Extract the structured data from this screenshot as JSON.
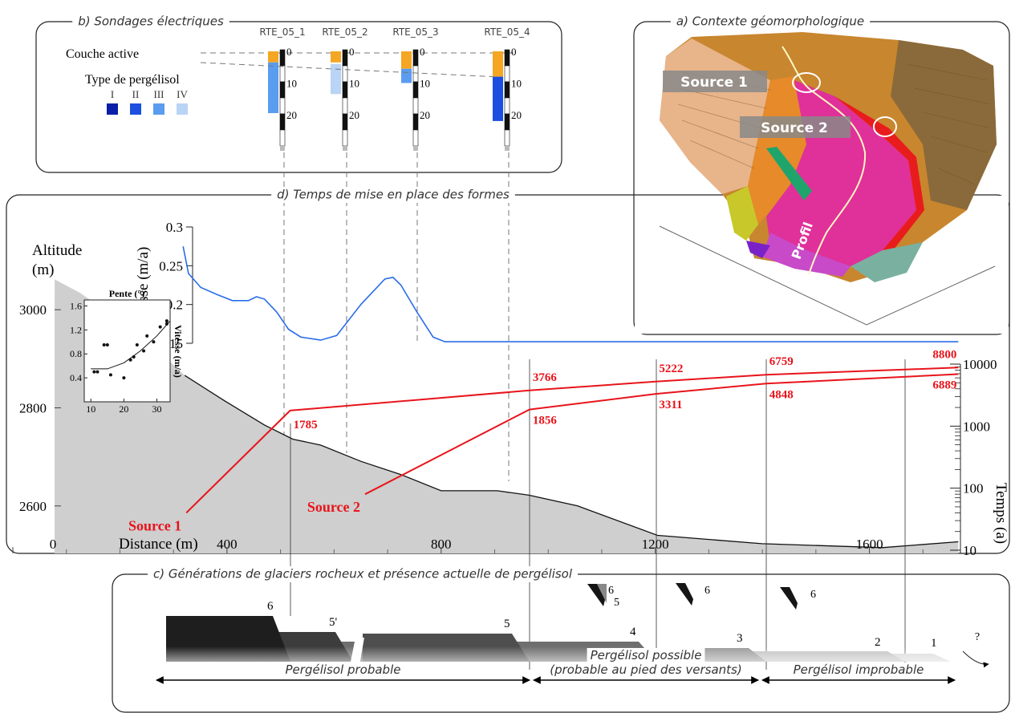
{
  "panel_b": {
    "title": "b) Sondages électriques",
    "active_layer_label": "Couche active",
    "type_label": "Type de pergélisol",
    "types": [
      {
        "label": "I",
        "color": "#0a1fa8"
      },
      {
        "label": "II",
        "color": "#1c4fe0"
      },
      {
        "label": "III",
        "color": "#5a9cf0"
      },
      {
        "label": "IV",
        "color": "#b9d4f4"
      }
    ],
    "active_color": "#f5a623",
    "depth_ticks": [
      0,
      10,
      20
    ],
    "soundings": [
      {
        "name": "RTE_05_1",
        "active_layer": 3.5,
        "permafrost": [
          3.5,
          19.5
        ],
        "permafrost_type": "III"
      },
      {
        "name": "RTE_05_2",
        "active_layer": 3.5,
        "permafrost": [
          4,
          13.5
        ],
        "permafrost_type": "IV"
      },
      {
        "name": "RTE_05_3",
        "active_layer": 5.5,
        "permafrost": [
          5.5,
          10
        ],
        "permafrost_type": "III"
      },
      {
        "name": "RTE_05_4",
        "active_layer": 8,
        "permafrost": [
          8,
          22
        ],
        "permafrost_type": "II"
      }
    ]
  },
  "panel_a": {
    "title": "a) Contexte géomorphologique",
    "source_1": "Source 1",
    "source_2": "Source 2",
    "profile": "Profil"
  },
  "panel_d": {
    "title": "d) Temps de mise en place des formes",
    "altitude_label": "Altitude",
    "altitude_unit": "(m)",
    "distance_label": "Distance (m)",
    "velocity_label": "Vitesse (m/a)",
    "time_label": "Temps (a)",
    "distance_lim": [
      -12,
      1767
    ],
    "distance_ticks": [
      0,
      400,
      800,
      1200,
      1600
    ],
    "altitude_lim": [
      2500,
      3100
    ],
    "altitude_ticks": [
      2600,
      2800,
      3000
    ],
    "velocity_lim": [
      0.15,
      0.3
    ],
    "velocity_ticks": [
      0.15,
      0.2,
      0.25,
      0.3
    ],
    "time_lim": [
      10,
      10000
    ],
    "time_ticks": [
      10,
      100,
      1000,
      10000
    ],
    "time_log": true,
    "profile": {
      "distance": [
        78,
        126,
        201,
        276,
        321,
        396,
        470,
        523,
        575,
        650,
        725,
        800,
        905,
        964,
        1055,
        1204,
        1399,
        1624,
        1766
      ],
      "altitude": [
        3062,
        3034,
        2977,
        2912,
        2866,
        2814,
        2765,
        2736,
        2724,
        2691,
        2664,
        2631,
        2631,
        2622,
        2600,
        2540,
        2523,
        2515,
        2527
      ]
    },
    "velocity": {
      "distance": [
        318,
        328,
        351,
        381,
        410,
        440,
        455,
        470,
        493,
        515,
        538,
        575,
        605,
        650,
        695,
        710,
        725,
        755,
        785,
        807,
        1766
      ],
      "values": [
        0.275,
        0.24,
        0.222,
        0.213,
        0.205,
        0.205,
        0.21,
        0.207,
        0.19,
        0.168,
        0.158,
        0.154,
        0.16,
        0.2,
        0.233,
        0.235,
        0.225,
        0.19,
        0.158,
        0.152,
        0.152
      ]
    },
    "sources": [
      {
        "name": "Source 1",
        "color": "#e8141b",
        "distance": [
          324,
          518,
          965,
          1201,
          1407,
          1766
        ],
        "time": [
          40,
          1785,
          3766,
          5222,
          6759,
          8800
        ]
      },
      {
        "name": "Source 2",
        "color": "#e8141b",
        "distance": [
          658,
          965,
          1201,
          1407,
          1766
        ],
        "time": [
          80,
          1856,
          3311,
          4848,
          6889
        ]
      }
    ],
    "inset": {
      "title": "Pente (°)",
      "ylabel": "Vitesse (m/a)",
      "xlim": [
        8,
        34
      ],
      "ylim": [
        0,
        1.7
      ],
      "xticks": [
        10,
        20,
        30
      ],
      "yticks": [
        0.4,
        0.8,
        1.2,
        1.6
      ],
      "x": [
        11,
        12,
        14,
        15,
        16,
        20,
        22,
        23,
        24,
        26,
        27,
        29,
        31,
        33,
        33
      ],
      "y": [
        0.5,
        0.5,
        0.95,
        0.95,
        0.45,
        0.4,
        0.7,
        0.75,
        0.95,
        0.85,
        1.1,
        1.0,
        1.25,
        1.35,
        1.3
      ],
      "trend": {
        "x": [
          10,
          15,
          20,
          25,
          30,
          34
        ],
        "y": [
          0.55,
          0.55,
          0.65,
          0.85,
          1.1,
          1.35
        ]
      }
    }
  },
  "panel_c": {
    "title": "c) Générations de glaciers rocheux et présence actuelle de pergélisol",
    "generations": [
      "6",
      "5'",
      "5",
      "4",
      "3",
      "2",
      "1"
    ],
    "icon_labels": [
      "6",
      "5",
      "6",
      "6"
    ],
    "unknown": "?",
    "zones": [
      {
        "lines": [
          "Pergélisol probable"
        ]
      },
      {
        "lines": [
          "Pergélisol possible",
          "(probable au pied des versants)"
        ]
      },
      {
        "lines": [
          "Pergélisol improbable"
        ]
      }
    ]
  }
}
